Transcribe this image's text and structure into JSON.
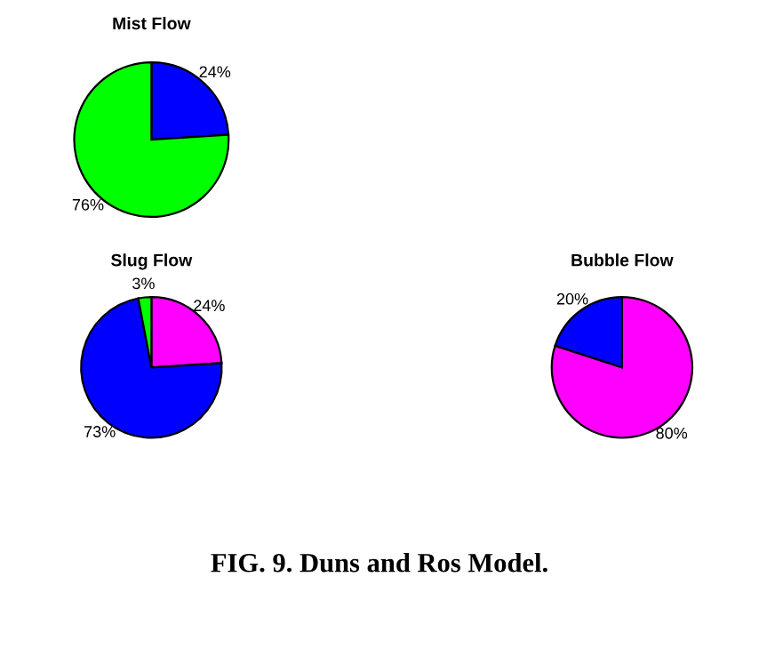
{
  "chart_data": [
    {
      "type": "pie",
      "title": "Mist Flow",
      "categories": [
        null,
        null
      ],
      "values": [
        24,
        76
      ],
      "colors": [
        "#0000ff",
        "#00ff00"
      ],
      "value_labels": [
        "24%",
        "76%"
      ]
    },
    {
      "type": "pie",
      "title": "Slug Flow",
      "categories": [
        null,
        null,
        null
      ],
      "values": [
        24,
        73,
        3
      ],
      "colors": [
        "#ff00ff",
        "#0000ff",
        "#00ff00"
      ],
      "value_labels": [
        "24%",
        "73%",
        "3%"
      ]
    },
    {
      "type": "pie",
      "title": "Bubble Flow",
      "categories": [
        null,
        null
      ],
      "values": [
        80,
        20
      ],
      "colors": [
        "#ff00ff",
        "#0000ff"
      ],
      "value_labels": [
        "80%",
        "20%"
      ],
      "annotations": [
        "FIG. 9. Duns and Ros Model."
      ]
    }
  ]
}
